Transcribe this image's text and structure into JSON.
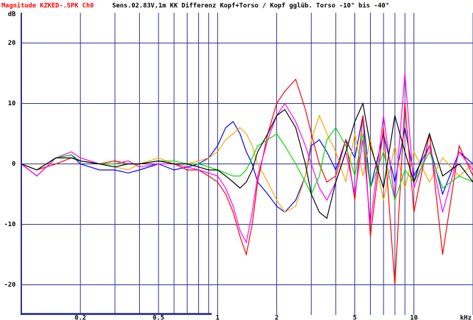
{
  "chart_data": {
    "type": "line",
    "title_prefix": "Magnitude KZKED-.SPK Ch0",
    "title": "Sens.02.83V,1m KK Differenz Kopf+Torso / Kopf gglüb. Torso -10° bis -40°",
    "y_label": "dB",
    "x_unit": "kHz",
    "log_x": true,
    "grid": true,
    "xlim": [
      0.1,
      20
    ],
    "ylim": [
      -25,
      25
    ],
    "xticks": [
      0.2,
      0.5,
      1,
      2,
      5,
      10
    ],
    "xgrid": [
      0.2,
      0.3,
      0.4,
      0.5,
      0.6,
      0.7,
      0.8,
      0.9,
      1,
      2,
      3,
      4,
      5,
      6,
      7,
      8,
      9,
      10,
      20
    ],
    "yticks": [
      -20,
      -10,
      0,
      10,
      20
    ],
    "x": [
      0.1,
      0.12,
      0.15,
      0.18,
      0.2,
      0.25,
      0.3,
      0.35,
      0.4,
      0.5,
      0.6,
      0.7,
      0.8,
      0.9,
      1,
      1.1,
      1.2,
      1.3,
      1.4,
      1.5,
      1.6,
      1.8,
      2,
      2.2,
      2.5,
      2.8,
      3,
      3.3,
      3.6,
      4,
      4.5,
      5,
      5.5,
      6,
      7,
      8,
      9,
      10,
      12,
      14,
      17,
      20
    ],
    "series": [
      {
        "color": "#0000ff",
        "values": [
          0,
          -2,
          1,
          1.5,
          0,
          -1,
          -1,
          -1.5,
          -1,
          0,
          -1,
          -0.5,
          0,
          1,
          3,
          6,
          7,
          5,
          2,
          0,
          -3,
          -5,
          -7,
          -8,
          -6,
          -2,
          3,
          4,
          2,
          -1,
          4,
          1,
          8,
          -4,
          5,
          -3,
          6,
          -2,
          3,
          -5,
          2,
          0
        ]
      },
      {
        "color": "#ffa500",
        "values": [
          0,
          -1,
          1,
          2,
          1,
          0,
          -0.5,
          -1,
          0,
          1,
          0,
          0,
          0.5,
          1,
          2,
          4,
          5,
          6,
          5,
          3,
          0,
          -3,
          -6,
          -8,
          -7,
          -2,
          4,
          8,
          5,
          2,
          -3,
          5,
          -2,
          4,
          -6,
          3,
          -4,
          2,
          -3,
          1,
          -2,
          0
        ]
      },
      {
        "color": "#ff0000",
        "values": [
          0,
          -1,
          0,
          1,
          0.5,
          0,
          0.5,
          0,
          0,
          0.5,
          0,
          -1,
          -1,
          -2,
          -3,
          -5,
          -8,
          -12,
          -15,
          -10,
          -3,
          5,
          10,
          12,
          14,
          9,
          5,
          0,
          -3,
          -2,
          4,
          -6,
          8,
          -12,
          6,
          -20,
          10,
          -8,
          5,
          -15,
          3,
          -2
        ]
      },
      {
        "color": "#ff00ff",
        "values": [
          0,
          -2,
          1,
          2,
          1,
          0,
          0,
          0.5,
          -0.5,
          0,
          0,
          -0.5,
          -1,
          -1.5,
          -2,
          -4,
          -7,
          -11,
          -13,
          -8,
          -2,
          4,
          8,
          10,
          7,
          3,
          0,
          -4,
          -6,
          -3,
          2,
          -5,
          4,
          -10,
          8,
          -6,
          15,
          -4,
          3,
          -8,
          2,
          -1
        ]
      },
      {
        "color": "#00dd00",
        "values": [
          0,
          -1,
          1,
          1.5,
          0.5,
          0,
          0,
          0,
          0,
          0.5,
          0.5,
          0,
          0,
          -0.5,
          -1,
          -1.5,
          -2,
          -2,
          -1,
          1,
          3,
          4,
          5,
          3,
          0,
          -3,
          -5,
          -2,
          4,
          6,
          3,
          -2,
          5,
          -4,
          2,
          -6,
          -1,
          -3,
          2,
          -4,
          -2,
          -3
        ]
      },
      {
        "color": "#000000",
        "values": [
          0,
          -1,
          1,
          1,
          0.5,
          0,
          -0.5,
          0,
          0,
          0.5,
          0,
          0,
          -0.5,
          -1,
          -1,
          -2,
          -3,
          -4,
          -3,
          -1,
          2,
          5,
          8,
          9,
          6,
          0,
          -5,
          -8,
          -9,
          -3,
          2,
          7,
          10,
          3,
          -4,
          8,
          2,
          -3,
          5,
          -2,
          0,
          -3
        ]
      }
    ]
  }
}
